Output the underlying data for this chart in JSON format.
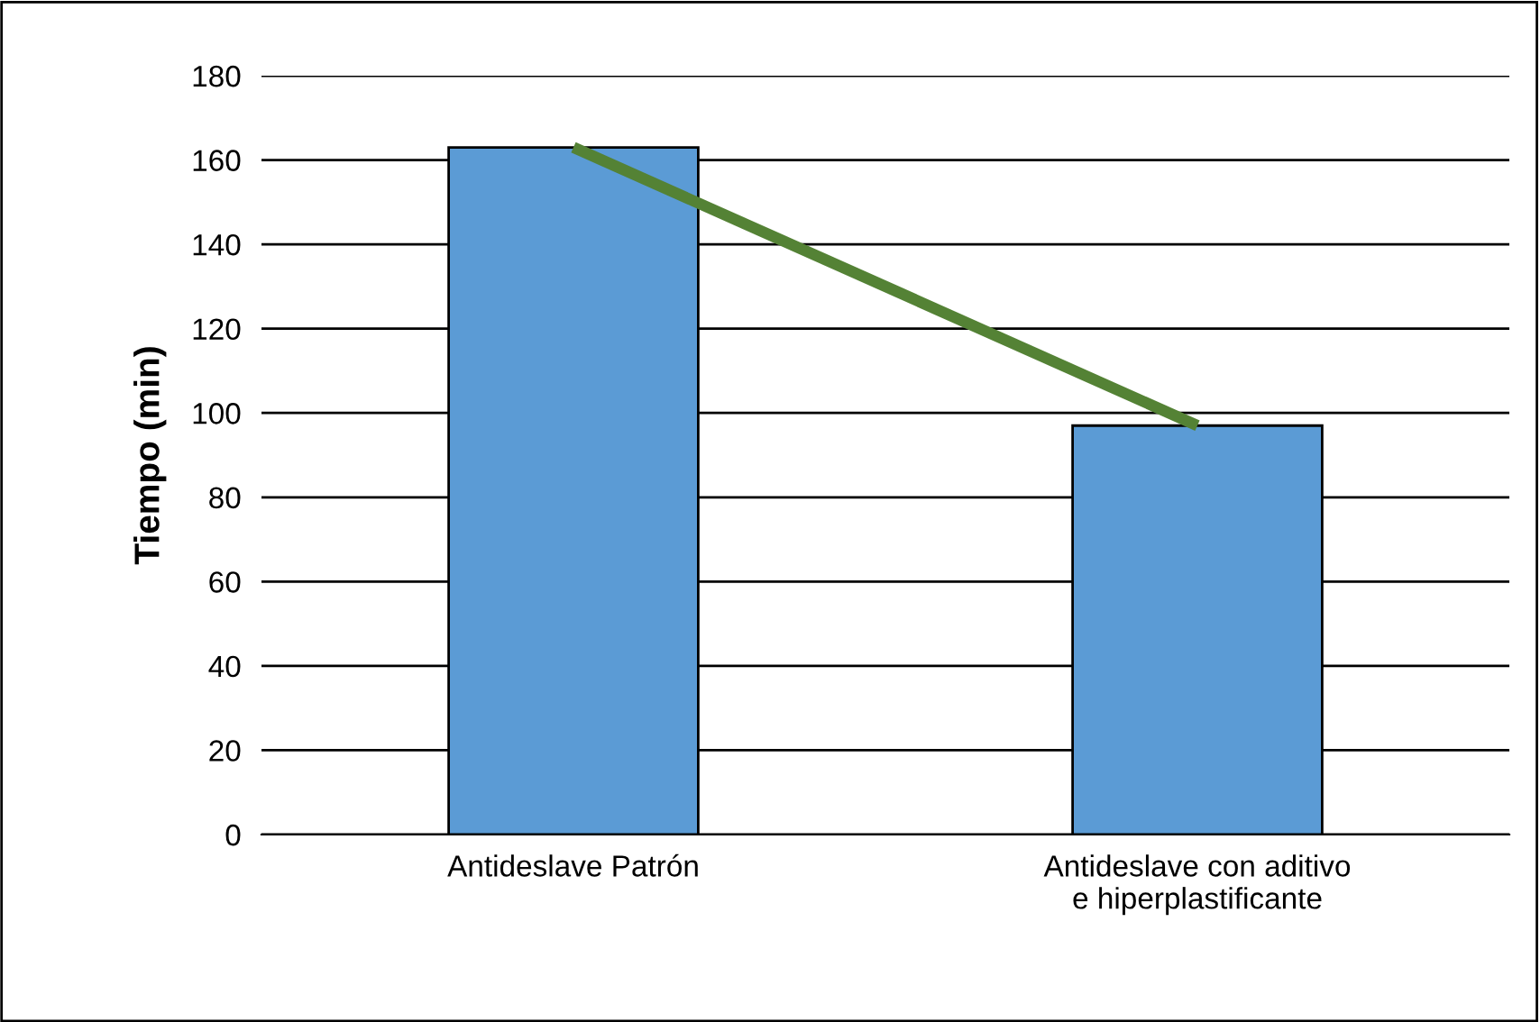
{
  "chart_data": {
    "type": "bar",
    "ylabel": "Tiempo (min)",
    "categories": [
      "Antideslave Patrón",
      "Antideslave con aditivo\ne hiperplastificante"
    ],
    "series": [
      {
        "color": "#5b9bd5",
        "values": [
          163,
          97
        ]
      },
      {
        "type": "line",
        "color": "#548235",
        "values": [
          163,
          97
        ]
      }
    ],
    "ylim": [
      0,
      180
    ],
    "yticks": [
      0,
      20,
      40,
      60,
      80,
      100,
      120,
      140,
      160,
      180
    ],
    "grid": "y"
  }
}
